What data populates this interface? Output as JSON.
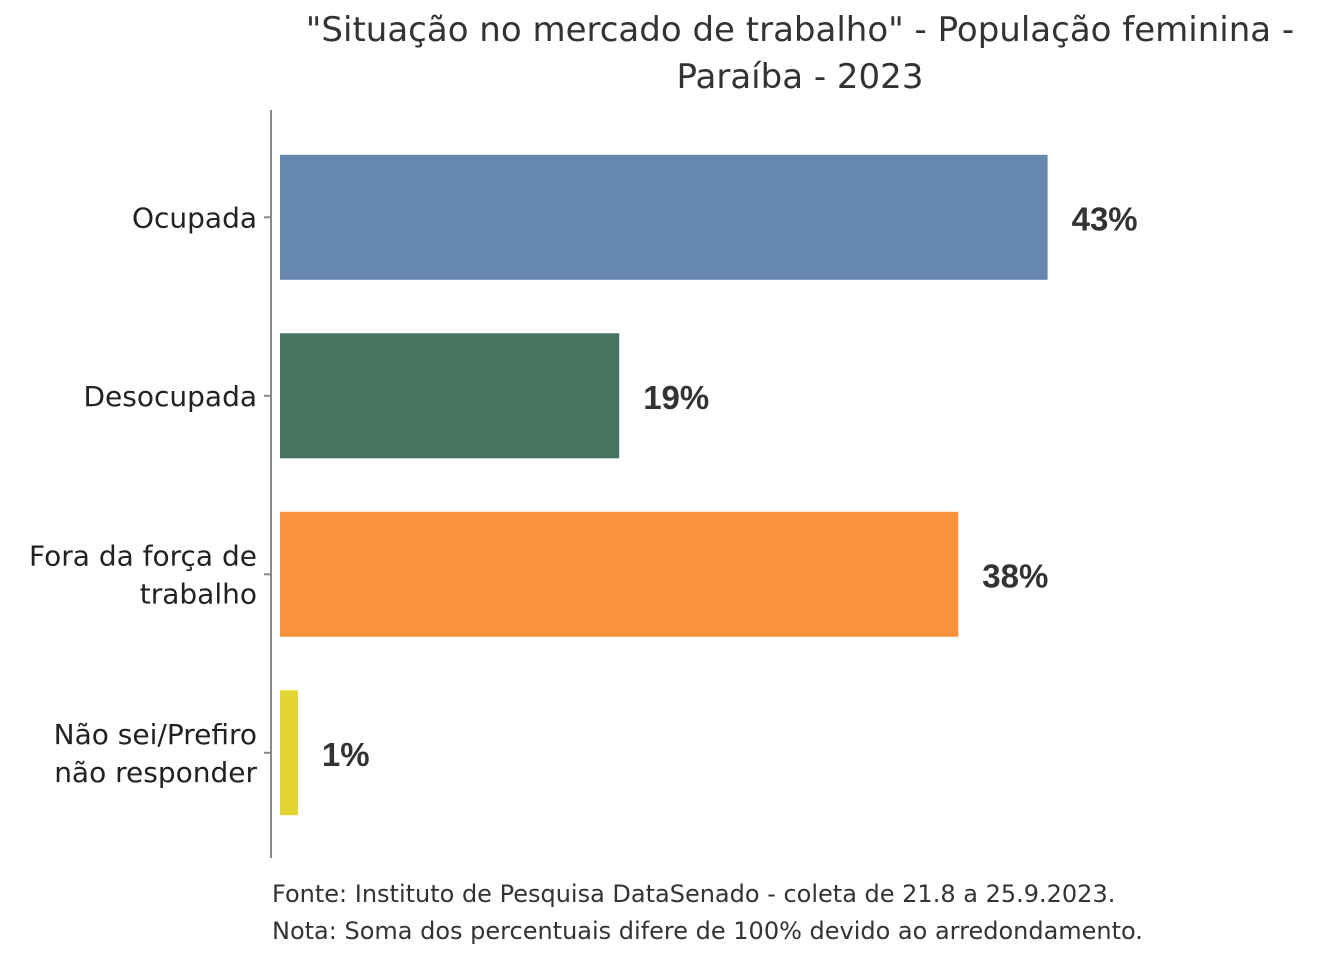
{
  "chart_data": {
    "type": "bar",
    "orientation": "horizontal",
    "title": [
      "\"Situação no mercado de trabalho\" - População feminina -",
      "Paraíba - 2023"
    ],
    "categories": [
      [
        "Ocupada"
      ],
      [
        "Desocupada"
      ],
      [
        "Fora da força de",
        "trabalho"
      ],
      [
        "Não sei/Prefiro",
        "não responder"
      ]
    ],
    "values": [
      43,
      19,
      38,
      1
    ],
    "value_labels": [
      "43%",
      "19%",
      "38%",
      "1%"
    ],
    "colors": [
      "#6688b0",
      "#467461",
      "#fa923d",
      "#e3d534"
    ],
    "xlim": [
      0,
      50
    ],
    "xlabel": "",
    "ylabel": "",
    "grid": false,
    "notes": [
      "Fonte: Instituto de Pesquisa DataSenado - coleta de 21.8 a 25.9.2023.",
      "Nota: Soma dos percentuais difere de 100% devido ao arredondamento."
    ]
  }
}
